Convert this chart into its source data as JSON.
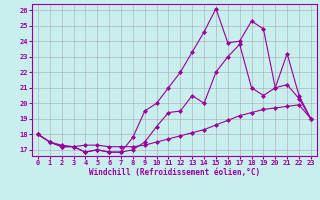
{
  "xlabel": "Windchill (Refroidissement éolien,°C)",
  "background_color": "#c8eeee",
  "line_color": "#990099",
  "ylim": [
    16.6,
    26.4
  ],
  "xlim": [
    -0.5,
    23.5
  ],
  "yticks": [
    17,
    18,
    19,
    20,
    21,
    22,
    23,
    24,
    25,
    26
  ],
  "xticks": [
    0,
    1,
    2,
    3,
    4,
    5,
    6,
    7,
    8,
    9,
    10,
    11,
    12,
    13,
    14,
    15,
    16,
    17,
    18,
    19,
    20,
    21,
    22,
    23
  ],
  "series1_x": [
    0,
    1,
    2,
    3,
    4,
    5,
    6,
    7,
    8,
    9,
    10,
    11,
    12,
    13,
    14,
    15,
    16,
    17,
    18,
    19,
    20,
    21,
    22,
    23
  ],
  "series1_y": [
    18.0,
    17.5,
    17.2,
    17.2,
    16.85,
    17.0,
    16.85,
    16.85,
    17.0,
    17.5,
    18.5,
    19.4,
    19.5,
    20.5,
    20.0,
    22.0,
    23.0,
    23.8,
    21.0,
    20.5,
    21.0,
    23.2,
    20.5,
    19.0
  ],
  "series2_x": [
    0,
    1,
    2,
    3,
    4,
    5,
    6,
    7,
    8,
    9,
    10,
    11,
    12,
    13,
    14,
    15,
    16,
    17,
    18,
    19,
    20,
    21,
    22,
    23
  ],
  "series2_y": [
    18.0,
    17.5,
    17.2,
    17.2,
    16.85,
    17.0,
    16.85,
    16.85,
    17.8,
    19.5,
    20.0,
    21.0,
    22.0,
    23.3,
    24.6,
    26.1,
    23.9,
    24.0,
    25.3,
    24.8,
    21.0,
    21.2,
    20.3,
    19.0
  ],
  "series3_x": [
    0,
    1,
    2,
    3,
    4,
    5,
    6,
    7,
    8,
    9,
    10,
    11,
    12,
    13,
    14,
    15,
    16,
    17,
    18,
    19,
    20,
    21,
    22,
    23
  ],
  "series3_y": [
    18.0,
    17.5,
    17.3,
    17.2,
    17.3,
    17.3,
    17.2,
    17.2,
    17.2,
    17.3,
    17.5,
    17.7,
    17.9,
    18.1,
    18.3,
    18.6,
    18.9,
    19.2,
    19.4,
    19.6,
    19.7,
    19.8,
    19.9,
    19.0
  ],
  "marker": "D",
  "markersize": 2.0,
  "linewidth": 0.8,
  "tick_fontsize": 5.0,
  "xlabel_fontsize": 5.5
}
